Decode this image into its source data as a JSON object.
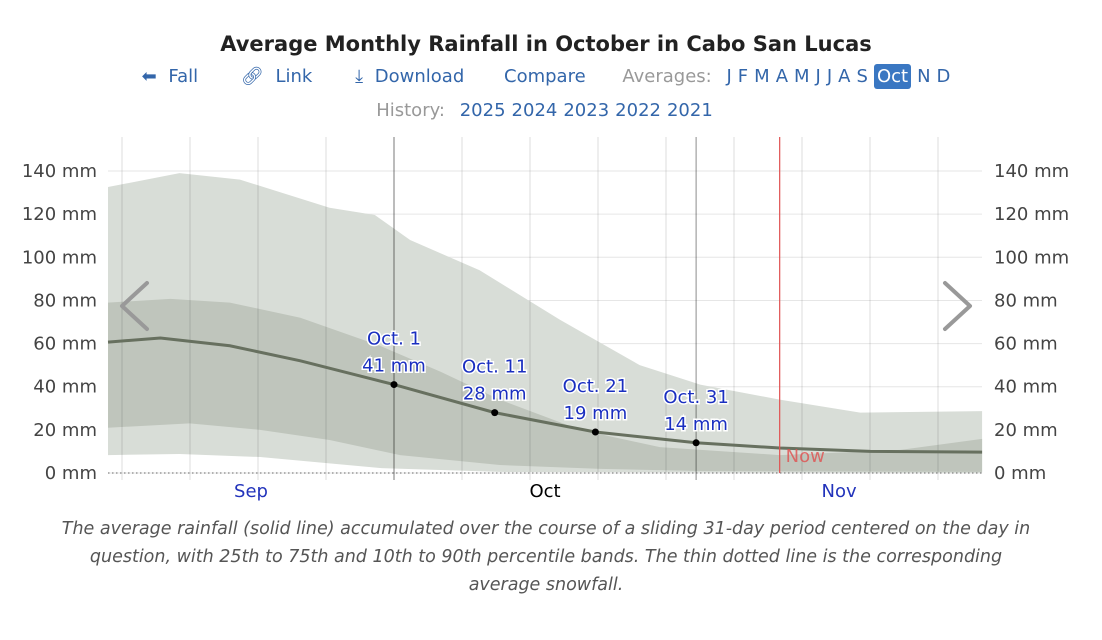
{
  "title": "Average Monthly Rainfall in October in Cabo San Lucas",
  "nav": {
    "back": "Fall",
    "link": "Link",
    "download": "Download",
    "compare": "Compare",
    "averages_label": "Averages:",
    "months": [
      "J",
      "F",
      "M",
      "A",
      "M",
      "J",
      "J",
      "A",
      "S",
      "Oct",
      "N",
      "D"
    ],
    "selected_month": "Oct"
  },
  "history": {
    "label": "History:",
    "years": [
      "2025",
      "2024",
      "2023",
      "2022",
      "2021"
    ]
  },
  "colors": {
    "accent": "#3a77c2",
    "mean": "#67705f",
    "band_outer": "#d8ddd7",
    "band_inner": "#bfc5bc",
    "now": "#e05050"
  },
  "chart_data": {
    "type": "area",
    "xunit": "days from Oct 1",
    "ylabel": "mm",
    "ylim": [
      0,
      140
    ],
    "yticks": [
      "0 mm",
      "20 mm",
      "40 mm",
      "60 mm",
      "80 mm",
      "100 mm",
      "120 mm",
      "140 mm"
    ],
    "month_labels": [
      {
        "label": "Sep",
        "day": -14.2
      },
      {
        "label": "Oct",
        "day": 15
      },
      {
        "label": "Nov",
        "day": 44.2
      }
    ],
    "now": {
      "label": "Now",
      "day": 38.3
    },
    "annotations": [
      {
        "day": 0,
        "date": "Oct. 1",
        "value": 41,
        "text": "41 mm"
      },
      {
        "day": 10,
        "date": "Oct. 11",
        "value": 28,
        "text": "28 mm"
      },
      {
        "day": 20,
        "date": "Oct. 21",
        "value": 19,
        "text": "19 mm"
      },
      {
        "day": 30,
        "date": "Oct. 31",
        "value": 14,
        "text": "14 mm"
      }
    ],
    "series": [
      {
        "name": "p90",
        "points": [
          [
            -28.4,
            132.6
          ],
          [
            -21.3,
            139
          ],
          [
            -15.3,
            136
          ],
          [
            -6.4,
            123
          ],
          [
            -1.9,
            119.6
          ],
          [
            1.6,
            108
          ],
          [
            8.5,
            94
          ],
          [
            16.5,
            71
          ],
          [
            24.4,
            50
          ],
          [
            30.4,
            41
          ],
          [
            38.3,
            34
          ],
          [
            46.3,
            28
          ],
          [
            58.4,
            28.7
          ]
        ]
      },
      {
        "name": "p75",
        "points": [
          [
            -28.4,
            79
          ],
          [
            -22.2,
            80.7
          ],
          [
            -16.3,
            79
          ],
          [
            -9.3,
            72
          ],
          [
            -1.4,
            59
          ],
          [
            4.6,
            47
          ],
          [
            10.5,
            34
          ],
          [
            18.5,
            20
          ],
          [
            26.4,
            12
          ],
          [
            38.3,
            8.3
          ],
          [
            50.3,
            10.7
          ],
          [
            58.4,
            15.8
          ]
        ]
      },
      {
        "name": "mean",
        "points": [
          [
            -28.4,
            60.7
          ],
          [
            -23.2,
            62.6
          ],
          [
            -16.3,
            59
          ],
          [
            -9.3,
            52
          ],
          [
            0,
            41
          ],
          [
            10,
            28
          ],
          [
            20,
            19
          ],
          [
            30,
            14
          ],
          [
            38.3,
            11.6
          ],
          [
            47.3,
            10
          ],
          [
            58.4,
            9.7
          ]
        ]
      },
      {
        "name": "p25",
        "points": [
          [
            -28.4,
            21
          ],
          [
            -20.3,
            23
          ],
          [
            -13.3,
            20
          ],
          [
            -6.4,
            15.3
          ],
          [
            0.6,
            8.3
          ],
          [
            10.5,
            3.7
          ],
          [
            20.5,
            1.9
          ],
          [
            30.4,
            0.9
          ],
          [
            58.4,
            0.5
          ]
        ]
      },
      {
        "name": "p10",
        "points": [
          [
            -28.4,
            8.3
          ],
          [
            -21.3,
            8.8
          ],
          [
            -13.3,
            7.4
          ],
          [
            -1.4,
            2.3
          ],
          [
            10.5,
            0.5
          ],
          [
            58.4,
            0
          ]
        ]
      }
    ]
  },
  "caption": "The average rainfall (solid line) accumulated over the course of a sliding 31-day period centered on the day in question, with 25th to 75th and 10th to 90th percentile bands. The thin dotted line is the corresponding average snowfall."
}
